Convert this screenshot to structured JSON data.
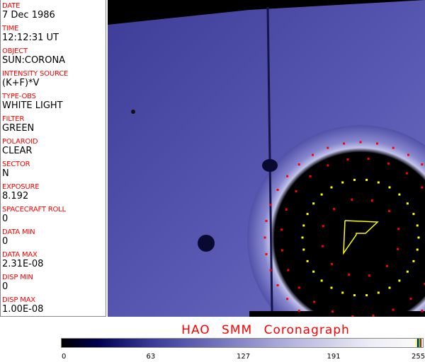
{
  "fields": [
    {
      "label": "DATE",
      "value": "7 Dec 1986"
    },
    {
      "label": "TIME",
      "value": "12:12:31 UT"
    },
    {
      "label": "OBJECT",
      "value": "SUN:CORONA"
    },
    {
      "label": "INTENSITY SOURCE",
      "value": "(K+F)*V"
    },
    {
      "label": "TYPE-OBS",
      "value": "WHITE LIGHT"
    },
    {
      "label": "FILTER",
      "value": "GREEN"
    },
    {
      "label": "POLAROID",
      "value": "CLEAR"
    },
    {
      "label": "SECTOR",
      "value": "N"
    },
    {
      "label": "EXPOSURE",
      "value": "8.192"
    },
    {
      "label": "SPACECRAFT ROLL",
      "value": "0"
    },
    {
      "label": "DATA MIN",
      "value": "0"
    },
    {
      "label": "DATA MAX",
      "value": "2.31E-08"
    },
    {
      "label": "DISP MIN",
      "value": "0"
    },
    {
      "label": "DISP MAX",
      "value": "1.00E-08"
    }
  ],
  "title": "HAO  SMM  Coronagraph",
  "colorbar": {
    "ticks": [
      "0",
      "63",
      "127",
      "191",
      "255"
    ],
    "end_colors": [
      "#ffff00",
      "#0000ff",
      "#00ff00",
      "#ff0000"
    ]
  },
  "colors": {
    "label": "#ff0000",
    "background": "#4a4aa8",
    "marker_red": "#ff0000",
    "marker_yellow": "#ffff00"
  }
}
